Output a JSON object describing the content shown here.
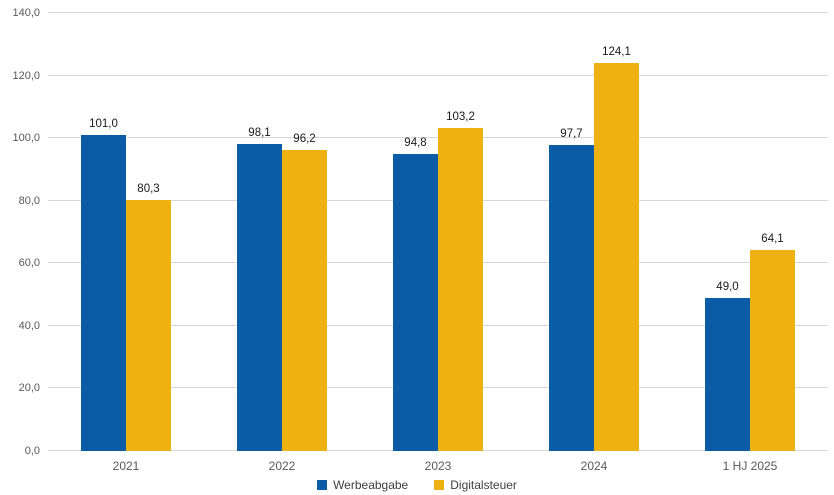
{
  "chart_data": {
    "type": "bar",
    "title": "",
    "xlabel": "",
    "ylabel": "",
    "categories": [
      "2021",
      "2022",
      "2023",
      "2024",
      "1 HJ 2025"
    ],
    "series": [
      {
        "name": "Werbeabgabe",
        "color": "#0a5ca7",
        "values": [
          101.0,
          98.1,
          94.8,
          97.7,
          49.0
        ]
      },
      {
        "name": "Digitalsteuer",
        "color": "#edb111",
        "values": [
          80.3,
          96.2,
          103.2,
          124.1,
          64.1
        ]
      }
    ],
    "data_labels": [
      [
        "101,0",
        "98,1",
        "94,8",
        "97,7",
        "49,0"
      ],
      [
        "80,3",
        "96,2",
        "103,2",
        "124,1",
        "64,1"
      ]
    ],
    "ylim": [
      0,
      140
    ],
    "ytick_step": 20,
    "ytick_labels": [
      "0,0",
      "20,0",
      "40,0",
      "60,0",
      "80,0",
      "100,0",
      "120,0",
      "140,0"
    ],
    "grid": "horizontal",
    "gridline_color": "#d6d6d6",
    "legend_position": "bottom-center",
    "number_format": "german-decimal-comma"
  },
  "legend": {
    "items": [
      {
        "label": "Werbeabgabe",
        "color": "#0a5ca7"
      },
      {
        "label": "Digitalsteuer",
        "color": "#edb111"
      }
    ]
  }
}
